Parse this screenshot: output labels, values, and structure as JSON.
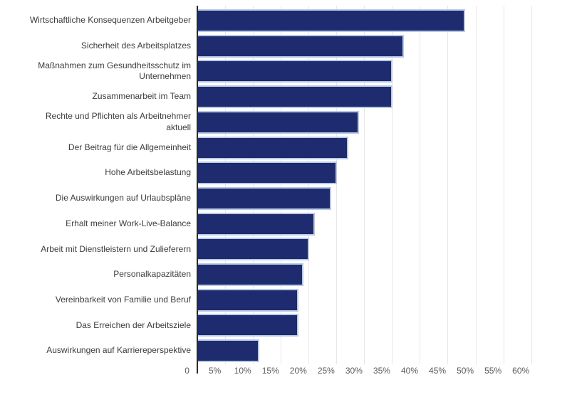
{
  "chart_data": {
    "type": "bar",
    "orientation": "horizontal",
    "title": "",
    "categories": [
      "Wirtschaftliche Konsequenzen Arbeitgeber",
      "Sicherheit des Arbeitsplatzes",
      "Maßnahmen zum Gesundheitsschutz im Unternehmen",
      "Zusammenarbeit im Team",
      "Rechte und Pflichten als Arbeitnehmer aktuell",
      "Der Beitrag für die Allgemeinheit",
      "Hohe Arbeitsbelastung",
      "Die Auswirkungen auf Urlaubspläne",
      "Erhalt meiner Work-Live-Balance",
      "Arbeit mit Dienstleistern und Zulieferern",
      "Personalkapazitäten",
      "Vereinbarkeit von Familie und Beruf",
      "Das Erreichen der Arbeitsziele",
      "Auswirkungen auf Karriereperspektive"
    ],
    "values": [
      48,
      37,
      35,
      35,
      29,
      27,
      25,
      24,
      21,
      20,
      19,
      18,
      18,
      11
    ],
    "unit": "%",
    "xlabel": "",
    "ylabel": "",
    "xlim": [
      0,
      60
    ],
    "x_ticks": [
      "0",
      "5%",
      "10%",
      "15%",
      "20%",
      "25%",
      "30%",
      "35%",
      "40%",
      "45%",
      "50%",
      "55%",
      "60%"
    ],
    "x_tick_step_pct": 5,
    "grid": true,
    "legend": false,
    "colors": {
      "bar_fill": "#1e2b6e",
      "bar_border": "#b7c9e7",
      "axis_line": "#2b2b2b",
      "gridline": "#e7e7e7",
      "category_label": "#3c3c3c",
      "tick_label": "#5a5a5a",
      "background": "#ffffff"
    }
  }
}
